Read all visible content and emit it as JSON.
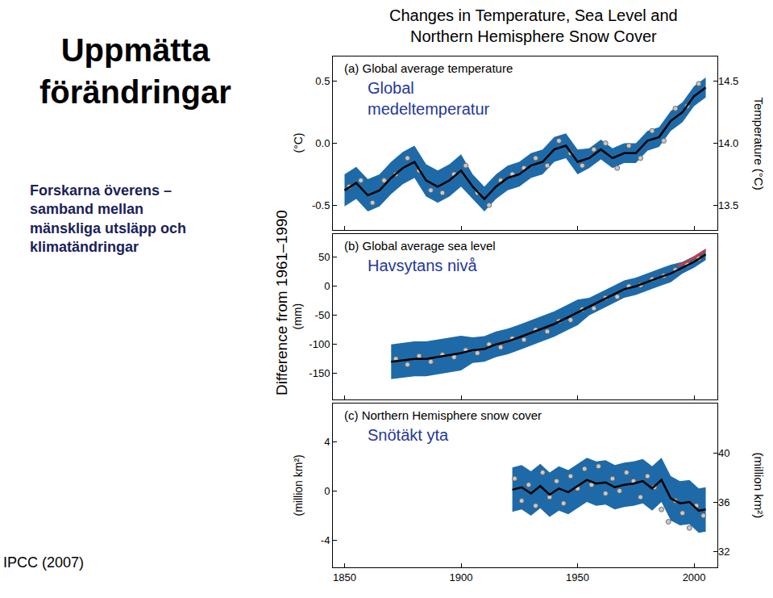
{
  "slide": {
    "title": [
      "Uppmätta",
      "förändringar"
    ],
    "text": [
      "Forskarna överens –",
      "samband mellan",
      "mänskliga utsläpp och",
      "klimatändringar"
    ],
    "source": "IPCC (2007)"
  },
  "figure": {
    "title": [
      "Changes in Temperature, Sea Level and",
      "Northern Hemisphere Snow Cover"
    ],
    "ylabel": "Difference from 1961–1990"
  },
  "chart_data": [
    {
      "type": "line",
      "title": "(a) Global average temperature",
      "annotation": [
        "Global",
        "medeltemperatur"
      ],
      "ylabel": "(°C)",
      "y2label": "Temperature (°C)",
      "xlim": [
        1845,
        2010
      ],
      "xticks": [
        1850,
        1900,
        1950,
        2000
      ],
      "ylim": [
        -0.7,
        0.7
      ],
      "yticks": [
        -0.5,
        {
          "value": 0,
          "label": "0.0"
        },
        0.5
      ],
      "y2lim": [
        13.3,
        14.7
      ],
      "y2ticks": [
        13.5,
        {
          "value": 14,
          "label": "14.0"
        },
        14.5
      ],
      "tick_labels": "y",
      "grid": false,
      "series": [
        {
          "type": "band",
          "color": "#1e6aa8",
          "x": [
            1850,
            1855,
            1860,
            1865,
            1870,
            1875,
            1880,
            1885,
            1890,
            1895,
            1900,
            1905,
            1910,
            1915,
            1920,
            1925,
            1930,
            1935,
            1940,
            1945,
            1950,
            1955,
            1960,
            1965,
            1970,
            1975,
            1980,
            1985,
            1990,
            1995,
            2000,
            2005
          ],
          "lower": [
            -0.51,
            -0.45,
            -0.55,
            -0.51,
            -0.41,
            -0.33,
            -0.28,
            -0.43,
            -0.48,
            -0.43,
            -0.35,
            -0.45,
            -0.55,
            -0.45,
            -0.38,
            -0.35,
            -0.28,
            -0.25,
            -0.15,
            -0.12,
            -0.25,
            -0.2,
            -0.13,
            -0.2,
            -0.16,
            -0.16,
            -0.06,
            -0.03,
            0.1,
            0.17,
            0.3,
            0.37
          ],
          "upper": [
            -0.25,
            -0.19,
            -0.29,
            -0.25,
            -0.15,
            -0.07,
            -0.02,
            -0.17,
            -0.22,
            -0.17,
            -0.09,
            -0.25,
            -0.35,
            -0.25,
            -0.18,
            -0.15,
            -0.08,
            -0.05,
            0.05,
            0.08,
            -0.05,
            -0.04,
            0.03,
            -0.04,
            0.0,
            0.0,
            0.1,
            0.13,
            0.26,
            0.33,
            0.46,
            0.53
          ]
        },
        {
          "type": "scatter",
          "color": "#c8c8c8",
          "marker": "circle",
          "x": [
            1852,
            1857,
            1862,
            1867,
            1872,
            1877,
            1882,
            1887,
            1892,
            1897,
            1902,
            1907,
            1912,
            1917,
            1922,
            1927,
            1932,
            1937,
            1942,
            1947,
            1952,
            1957,
            1962,
            1967,
            1972,
            1977,
            1982,
            1987,
            1992,
            1997,
            2002
          ],
          "values": [
            -0.35,
            -0.3,
            -0.48,
            -0.3,
            -0.25,
            -0.12,
            -0.22,
            -0.38,
            -0.4,
            -0.25,
            -0.18,
            -0.4,
            -0.5,
            -0.3,
            -0.25,
            -0.2,
            -0.12,
            -0.18,
            0.02,
            -0.08,
            -0.18,
            -0.05,
            0.0,
            -0.2,
            -0.02,
            -0.12,
            0.1,
            0.02,
            0.28,
            0.3,
            0.48
          ]
        },
        {
          "type": "line",
          "color": "#000000",
          "line_style": "solid",
          "x": [
            1850,
            1855,
            1860,
            1865,
            1870,
            1875,
            1880,
            1885,
            1890,
            1895,
            1900,
            1905,
            1910,
            1915,
            1920,
            1925,
            1930,
            1935,
            1940,
            1945,
            1950,
            1955,
            1960,
            1965,
            1970,
            1975,
            1980,
            1985,
            1990,
            1995,
            2000,
            2005
          ],
          "values": [
            -0.38,
            -0.32,
            -0.42,
            -0.38,
            -0.28,
            -0.2,
            -0.15,
            -0.3,
            -0.35,
            -0.3,
            -0.22,
            -0.35,
            -0.45,
            -0.35,
            -0.28,
            -0.25,
            -0.18,
            -0.15,
            -0.05,
            -0.02,
            -0.15,
            -0.12,
            -0.05,
            -0.12,
            -0.08,
            -0.08,
            0.02,
            0.05,
            0.18,
            0.25,
            0.38,
            0.45
          ]
        }
      ]
    },
    {
      "type": "line",
      "title": "(b) Global average sea level",
      "annotation": [
        "Havsytans nivå"
      ],
      "ylabel": "(mm)",
      "xlim": [
        1845,
        2010
      ],
      "xticks": [
        1850,
        1900,
        1950,
        2000
      ],
      "ylim": [
        -195,
        90
      ],
      "yticks": [
        -150,
        -100,
        -50,
        0,
        50
      ],
      "tick_labels": "y",
      "grid": false,
      "series": [
        {
          "type": "band",
          "color": "#1e6aa8",
          "x": [
            1870,
            1875,
            1880,
            1885,
            1890,
            1895,
            1900,
            1905,
            1910,
            1915,
            1920,
            1925,
            1930,
            1935,
            1940,
            1945,
            1950,
            1955,
            1960,
            1965,
            1970,
            1975,
            1980,
            1985,
            1990,
            1995,
            2000,
            2005
          ],
          "lower": [
            -160,
            -158,
            -155,
            -155,
            -152,
            -148,
            -145,
            -132,
            -130,
            -122,
            -117,
            -110,
            -102,
            -94,
            -87,
            -77,
            -67,
            -50,
            -40,
            -30,
            -20,
            -15,
            -7,
            0,
            7,
            22,
            32,
            45
          ],
          "upper": [
            -100,
            -98,
            -95,
            -95,
            -92,
            -88,
            -85,
            -88,
            -86,
            -78,
            -73,
            -66,
            -58,
            -50,
            -43,
            -33,
            -23,
            -20,
            -10,
            0,
            10,
            15,
            23,
            30,
            37,
            42,
            52,
            65
          ]
        },
        {
          "type": "scatter",
          "color": "#c8c8c8",
          "marker": "circle",
          "x": [
            1872,
            1877,
            1882,
            1887,
            1892,
            1897,
            1902,
            1907,
            1912,
            1917,
            1922,
            1927,
            1932,
            1937,
            1942,
            1947,
            1952,
            1957,
            1962,
            1967,
            1972,
            1977,
            1982,
            1987,
            1992,
            1997,
            2002
          ],
          "values": [
            -125,
            -135,
            -120,
            -130,
            -118,
            -122,
            -110,
            -115,
            -100,
            -105,
            -90,
            -92,
            -75,
            -78,
            -60,
            -58,
            -40,
            -38,
            -20,
            -18,
            0,
            2,
            12,
            18,
            28,
            38,
            48
          ]
        },
        {
          "type": "line",
          "color": "#000000",
          "line_style": "solid",
          "x": [
            1870,
            1875,
            1880,
            1885,
            1890,
            1895,
            1900,
            1905,
            1910,
            1915,
            1920,
            1925,
            1930,
            1935,
            1940,
            1945,
            1950,
            1955,
            1960,
            1965,
            1970,
            1975,
            1980,
            1985,
            1990,
            1995,
            2000,
            2005
          ],
          "values": [
            -130,
            -128,
            -125,
            -125,
            -122,
            -118,
            -115,
            -110,
            -108,
            -100,
            -95,
            -88,
            -80,
            -72,
            -65,
            -55,
            -45,
            -35,
            -25,
            -15,
            -5,
            0,
            8,
            15,
            22,
            32,
            42,
            55
          ]
        },
        {
          "type": "line",
          "color": "#e8302a",
          "line_style": "solid",
          "x": [
            1993,
            1997,
            2001,
            2005
          ],
          "values": [
            35,
            42,
            52,
            62
          ]
        }
      ]
    },
    {
      "type": "line",
      "title": "(c) Northern Hemisphere snow cover",
      "annotation": [
        "Snötäkt yta"
      ],
      "ylabel": "(million km²)",
      "y2label": "(million km²)",
      "xlim": [
        1845,
        2010
      ],
      "xticks": [
        1850,
        1900,
        1950,
        2000
      ],
      "ylim": [
        -6.2,
        7.1
      ],
      "yticks": [
        -4,
        0,
        4
      ],
      "y2lim": [
        30.7,
        44.0
      ],
      "y2ticks": [
        32,
        36,
        40
      ],
      "grid": false,
      "series": [
        {
          "type": "band",
          "color": "#1e6aa8",
          "x": [
            1922,
            1926,
            1930,
            1934,
            1938,
            1942,
            1946,
            1950,
            1954,
            1958,
            1962,
            1966,
            1970,
            1974,
            1978,
            1982,
            1986,
            1990,
            1994,
            1998,
            2002,
            2005
          ],
          "lower": [
            -1.7,
            -1.5,
            -2.0,
            -1.4,
            -2.1,
            -1.6,
            -1.9,
            -1.4,
            -0.9,
            -1.2,
            -1.1,
            -1.5,
            -1.3,
            -1.2,
            -1.0,
            -1.6,
            -0.9,
            -2.4,
            -2.8,
            -2.7,
            -3.4,
            -3.3
          ],
          "upper": [
            1.9,
            2.1,
            1.6,
            2.2,
            1.5,
            2.0,
            1.7,
            2.2,
            2.7,
            2.4,
            2.5,
            2.1,
            2.3,
            2.4,
            2.6,
            2.0,
            2.7,
            1.2,
            0.8,
            0.9,
            0.2,
            0.3
          ]
        },
        {
          "type": "scatter",
          "color": "#c8c8c8",
          "marker": "circle",
          "x": [
            1923,
            1926,
            1929,
            1932,
            1935,
            1938,
            1941,
            1944,
            1947,
            1950,
            1953,
            1956,
            1959,
            1962,
            1965,
            1968,
            1971,
            1974,
            1977,
            1980,
            1983,
            1986,
            1989,
            1992,
            1995,
            1998,
            2001,
            2004
          ],
          "values": [
            1.0,
            -0.8,
            0.5,
            -1.2,
            1.5,
            -0.5,
            0.8,
            -1.0,
            1.2,
            0.2,
            1.8,
            0.5,
            2.0,
            -0.2,
            1.0,
            0.0,
            1.5,
            0.8,
            -0.5,
            1.2,
            0.3,
            -1.5,
            -2.5,
            -0.8,
            -1.8,
            -3.0,
            -1.2,
            -2.0
          ]
        },
        {
          "type": "line",
          "color": "#000000",
          "line_style": "solid",
          "x": [
            1922,
            1926,
            1930,
            1934,
            1938,
            1942,
            1946,
            1950,
            1954,
            1958,
            1962,
            1966,
            1970,
            1974,
            1978,
            1982,
            1986,
            1990,
            1994,
            1998,
            2002,
            2005
          ],
          "values": [
            0.1,
            0.3,
            -0.2,
            0.4,
            -0.3,
            0.2,
            -0.1,
            0.4,
            0.9,
            0.6,
            0.7,
            0.3,
            0.5,
            0.6,
            0.8,
            0.2,
            0.9,
            -0.6,
            -1.0,
            -0.9,
            -1.6,
            -1.5
          ]
        }
      ]
    }
  ]
}
